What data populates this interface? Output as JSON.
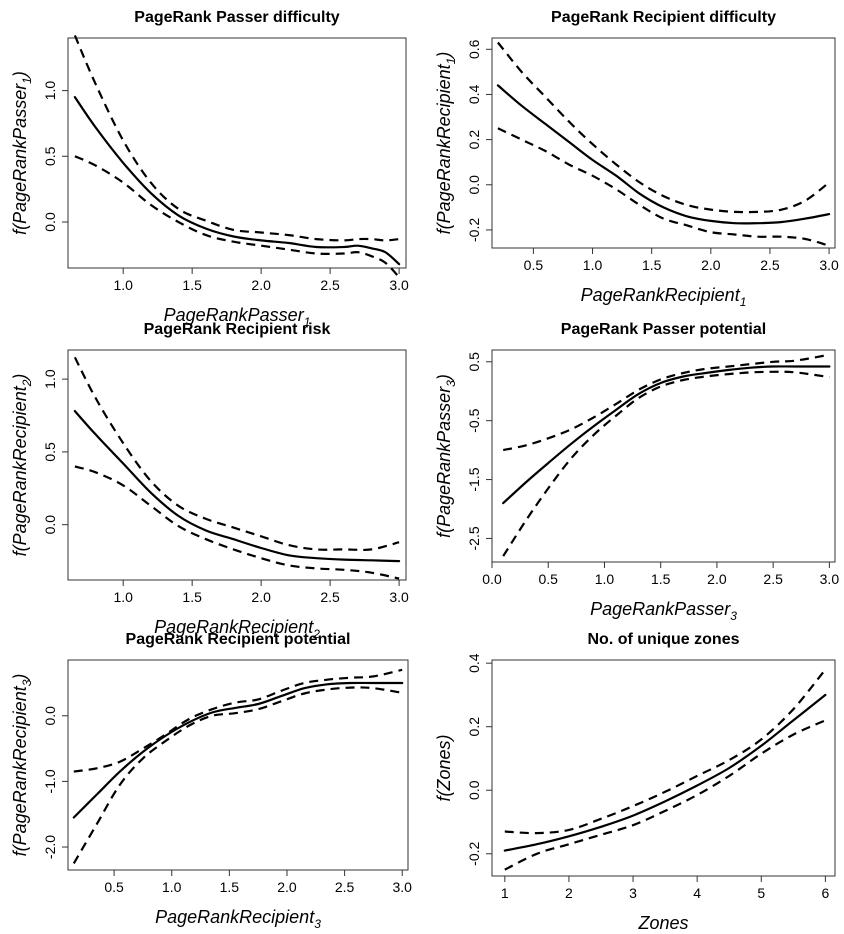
{
  "chart_data": [
    {
      "type": "line",
      "title": "PageRank Passer difficulty",
      "xlabel": "PageRankPasser",
      "xlabel_sub": "1",
      "ylabel": "f(PageRankPasser",
      "ylabel_sub": "1",
      "ylabel_close": ")",
      "xlim": [
        0.6,
        3.05
      ],
      "ylim": [
        -0.35,
        1.4
      ],
      "xticks": [
        1.0,
        1.5,
        2.0,
        2.5,
        3.0
      ],
      "xtick_labels": [
        "1.0",
        "1.5",
        "2.0",
        "2.5",
        "3.0"
      ],
      "yticks": [
        0.0,
        0.5,
        1.0
      ],
      "ytick_labels": [
        "0.0",
        "0.5",
        "1.0"
      ],
      "x": [
        0.65,
        0.8,
        1.0,
        1.2,
        1.4,
        1.6,
        1.8,
        2.0,
        2.2,
        2.4,
        2.6,
        2.7,
        2.8,
        2.9,
        3.0
      ],
      "series": [
        {
          "style": "solid",
          "values": [
            0.95,
            0.72,
            0.45,
            0.22,
            0.05,
            -0.05,
            -0.11,
            -0.14,
            -0.16,
            -0.19,
            -0.19,
            -0.18,
            -0.2,
            -0.23,
            -0.32
          ]
        },
        {
          "style": "dashed",
          "values": [
            1.42,
            1.05,
            0.62,
            0.3,
            0.1,
            0.01,
            -0.06,
            -0.08,
            -0.1,
            -0.13,
            -0.14,
            -0.13,
            -0.13,
            -0.14,
            -0.13
          ]
        },
        {
          "style": "dashed",
          "values": [
            0.5,
            0.43,
            0.3,
            0.13,
            0.0,
            -0.1,
            -0.15,
            -0.18,
            -0.21,
            -0.24,
            -0.24,
            -0.23,
            -0.26,
            -0.31,
            -0.42
          ]
        }
      ]
    },
    {
      "type": "line",
      "title": "PageRank Recipient difficulty",
      "xlabel": "PageRankRecipient",
      "xlabel_sub": "1",
      "ylabel": "f(PageRankRecipient",
      "ylabel_sub": "1",
      "ylabel_close": ")",
      "xlim": [
        0.15,
        3.05
      ],
      "ylim": [
        -0.28,
        0.65
      ],
      "xticks": [
        0.5,
        1.0,
        1.5,
        2.0,
        2.5,
        3.0
      ],
      "xtick_labels": [
        "0.5",
        "1.0",
        "1.5",
        "2.0",
        "2.5",
        "3.0"
      ],
      "yticks": [
        -0.2,
        0.0,
        0.2,
        0.4,
        0.6
      ],
      "ytick_labels": [
        "-0.2",
        "0.0",
        "0.2",
        "0.4",
        "0.6"
      ],
      "x": [
        0.2,
        0.4,
        0.6,
        0.8,
        1.0,
        1.2,
        1.4,
        1.6,
        1.8,
        2.0,
        2.2,
        2.4,
        2.6,
        2.8,
        3.0
      ],
      "series": [
        {
          "style": "solid",
          "values": [
            0.44,
            0.35,
            0.27,
            0.19,
            0.11,
            0.04,
            -0.04,
            -0.1,
            -0.14,
            -0.16,
            -0.17,
            -0.17,
            -0.165,
            -0.15,
            -0.13
          ]
        },
        {
          "style": "dashed",
          "values": [
            0.63,
            0.5,
            0.39,
            0.28,
            0.18,
            0.09,
            0.01,
            -0.05,
            -0.09,
            -0.11,
            -0.12,
            -0.12,
            -0.11,
            -0.07,
            0.01
          ]
        },
        {
          "style": "dashed",
          "values": [
            0.25,
            0.2,
            0.15,
            0.09,
            0.04,
            -0.02,
            -0.09,
            -0.15,
            -0.18,
            -0.21,
            -0.22,
            -0.23,
            -0.23,
            -0.24,
            -0.27
          ]
        }
      ]
    },
    {
      "type": "line",
      "title": "PageRank Recipient risk",
      "xlabel": "PageRankRecipient",
      "xlabel_sub": "2",
      "ylabel": "f(PageRankRecipient",
      "ylabel_sub": "2",
      "ylabel_close": ")",
      "xlim": [
        0.6,
        3.05
      ],
      "ylim": [
        -0.38,
        1.2
      ],
      "xticks": [
        1.0,
        1.5,
        2.0,
        2.5,
        3.0
      ],
      "xtick_labels": [
        "1.0",
        "1.5",
        "2.0",
        "2.5",
        "3.0"
      ],
      "yticks": [
        0.0,
        0.5,
        1.0
      ],
      "ytick_labels": [
        "0.0",
        "0.5",
        "1.0"
      ],
      "x": [
        0.65,
        0.8,
        1.0,
        1.2,
        1.4,
        1.6,
        1.8,
        2.0,
        2.2,
        2.4,
        2.6,
        2.8,
        3.0
      ],
      "series": [
        {
          "style": "solid",
          "values": [
            0.78,
            0.62,
            0.42,
            0.22,
            0.06,
            -0.04,
            -0.1,
            -0.16,
            -0.21,
            -0.23,
            -0.24,
            -0.245,
            -0.25
          ]
        },
        {
          "style": "dashed",
          "values": [
            1.15,
            0.87,
            0.56,
            0.3,
            0.13,
            0.04,
            -0.02,
            -0.08,
            -0.14,
            -0.17,
            -0.17,
            -0.17,
            -0.12
          ]
        },
        {
          "style": "dashed",
          "values": [
            0.4,
            0.36,
            0.27,
            0.13,
            -0.01,
            -0.1,
            -0.17,
            -0.23,
            -0.28,
            -0.3,
            -0.31,
            -0.33,
            -0.37
          ]
        }
      ]
    },
    {
      "type": "line",
      "title": "PageRank Passer potential",
      "xlabel": "PageRankPasser",
      "xlabel_sub": "3",
      "ylabel": "f(PageRankPasser",
      "ylabel_sub": "3",
      "ylabel_close": ")",
      "xlim": [
        0.0,
        3.05
      ],
      "ylim": [
        -2.9,
        0.7
      ],
      "xticks": [
        0.0,
        0.5,
        1.0,
        1.5,
        2.0,
        2.5,
        3.0
      ],
      "xtick_labels": [
        "0.0",
        "0.5",
        "1.0",
        "1.5",
        "2.0",
        "2.5",
        "3.0"
      ],
      "yticks": [
        -2.5,
        -1.5,
        -0.5,
        0.5
      ],
      "ytick_labels": [
        "-2.5",
        "-1.5",
        "-0.5",
        "0.5"
      ],
      "x": [
        0.1,
        0.3,
        0.5,
        0.7,
        0.9,
        1.1,
        1.3,
        1.5,
        1.7,
        1.9,
        2.1,
        2.3,
        2.5,
        2.7,
        3.0
      ],
      "series": [
        {
          "style": "solid",
          "values": [
            -1.9,
            -1.55,
            -1.22,
            -0.9,
            -0.6,
            -0.32,
            -0.05,
            0.14,
            0.25,
            0.31,
            0.36,
            0.4,
            0.42,
            0.42,
            0.42
          ]
        },
        {
          "style": "dashed",
          "values": [
            -1.0,
            -0.92,
            -0.8,
            -0.65,
            -0.45,
            -0.22,
            0.02,
            0.2,
            0.31,
            0.38,
            0.42,
            0.46,
            0.5,
            0.52,
            0.62
          ]
        },
        {
          "style": "dashed",
          "values": [
            -2.8,
            -2.2,
            -1.65,
            -1.15,
            -0.75,
            -0.42,
            -0.12,
            0.08,
            0.19,
            0.25,
            0.29,
            0.32,
            0.33,
            0.32,
            0.24
          ]
        }
      ]
    },
    {
      "type": "line",
      "title": "PageRank Recipient potential",
      "xlabel": "PageRankRecipient",
      "xlabel_sub": "3",
      "ylabel": "f(PageRankRecipient",
      "ylabel_sub": "3",
      "ylabel_close": ")",
      "xlim": [
        0.1,
        3.05
      ],
      "ylim": [
        -2.35,
        0.85
      ],
      "xticks": [
        0.5,
        1.0,
        1.5,
        2.0,
        2.5,
        3.0
      ],
      "xtick_labels": [
        "0.5",
        "1.0",
        "1.5",
        "2.0",
        "2.5",
        "3.0"
      ],
      "yticks": [
        -2.0,
        -1.0,
        0.0
      ],
      "ytick_labels": [
        "-2.0",
        "-1.0",
        "0.0"
      ],
      "x": [
        0.15,
        0.35,
        0.55,
        0.75,
        0.95,
        1.15,
        1.35,
        1.55,
        1.75,
        1.95,
        2.15,
        2.35,
        2.55,
        2.75,
        3.0
      ],
      "series": [
        {
          "style": "solid",
          "values": [
            -1.55,
            -1.2,
            -0.85,
            -0.55,
            -0.3,
            -0.1,
            0.05,
            0.12,
            0.18,
            0.3,
            0.42,
            0.48,
            0.5,
            0.5,
            0.5
          ]
        },
        {
          "style": "dashed",
          "values": [
            -0.85,
            -0.8,
            -0.7,
            -0.5,
            -0.28,
            -0.05,
            0.1,
            0.2,
            0.25,
            0.38,
            0.5,
            0.55,
            0.58,
            0.6,
            0.7
          ]
        },
        {
          "style": "dashed",
          "values": [
            -2.25,
            -1.65,
            -1.05,
            -0.65,
            -0.38,
            -0.15,
            0.0,
            0.04,
            0.1,
            0.22,
            0.34,
            0.4,
            0.43,
            0.42,
            0.35
          ]
        }
      ]
    },
    {
      "type": "line",
      "title": "No. of unique zones",
      "xlabel": "Zones",
      "xlabel_sub": "",
      "ylabel": "f(Zones",
      "ylabel_sub": "",
      "ylabel_close": ")",
      "xlim": [
        0.8,
        6.15
      ],
      "ylim": [
        -0.27,
        0.41
      ],
      "xticks": [
        1,
        2,
        3,
        4,
        5,
        6
      ],
      "xtick_labels": [
        "1",
        "2",
        "3",
        "4",
        "5",
        "6"
      ],
      "yticks": [
        -0.2,
        0.0,
        0.2,
        0.4
      ],
      "ytick_labels": [
        "-0.2",
        "0.0",
        "0.2",
        "0.4"
      ],
      "x": [
        1.0,
        1.5,
        2.0,
        2.5,
        3.0,
        3.5,
        4.0,
        4.5,
        5.0,
        5.5,
        6.0
      ],
      "series": [
        {
          "style": "solid",
          "values": [
            -0.19,
            -0.17,
            -0.145,
            -0.115,
            -0.08,
            -0.035,
            0.015,
            0.07,
            0.14,
            0.22,
            0.3
          ]
        },
        {
          "style": "dashed",
          "values": [
            -0.13,
            -0.135,
            -0.125,
            -0.09,
            -0.05,
            -0.005,
            0.045,
            0.095,
            0.16,
            0.255,
            0.38
          ]
        },
        {
          "style": "dashed",
          "values": [
            -0.25,
            -0.2,
            -0.17,
            -0.14,
            -0.11,
            -0.065,
            -0.015,
            0.045,
            0.115,
            0.175,
            0.22
          ]
        }
      ]
    }
  ]
}
